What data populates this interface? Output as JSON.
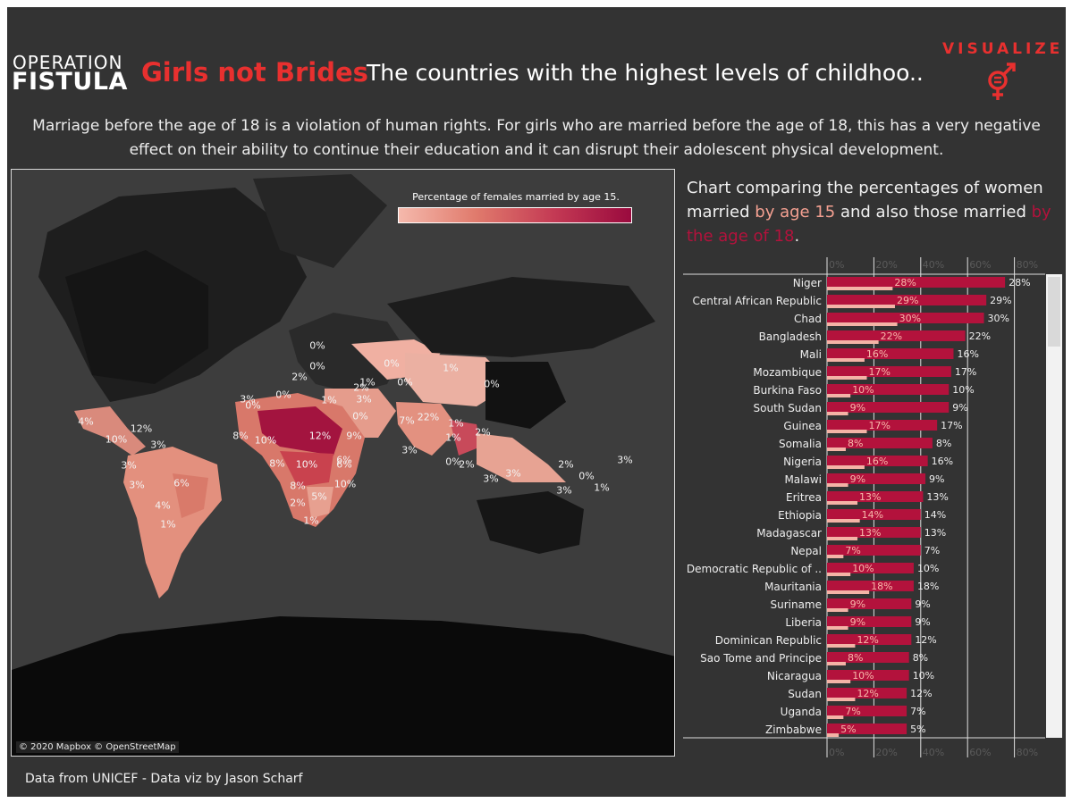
{
  "header": {
    "logo_line1": "OPERATION",
    "logo_line2": "FISTULA",
    "brand_title": "Girls not Brides",
    "headline": "The countries with the highest levels of childhoo..",
    "viz_word": "VISUALIZE",
    "viz_icon": "gender-equality-icon"
  },
  "intro_text": "Marriage before the age of 18 is a violation of human rights.  For girls who are married before the age of 18,  this has a very negative effect on their ability to continue their education and it can disrupt their adolescent physical development.",
  "map": {
    "legend_title": "Percentage of females married by age 15.",
    "attribution": "© 2020 Mapbox © OpenStreetMap",
    "labels": [
      "0%",
      "0%",
      "0%",
      "1%",
      "0%",
      "2%",
      "1%",
      "0%",
      "2%",
      "0%",
      "3%",
      "0%",
      "1%",
      "0%",
      "4%",
      "12%",
      "10%",
      "3%",
      "8%",
      "10%",
      "12%",
      "9%",
      "7%",
      "22%",
      "1%",
      "2%",
      "1%",
      "3%",
      "6%",
      "8%",
      "10%",
      "6%",
      "0%",
      "2%",
      "3%",
      "3%",
      "2%",
      "0%",
      "3%",
      "3%",
      "1%",
      "3%",
      "6%",
      "8%",
      "10%",
      "5%",
      "2%",
      "4%",
      "1%",
      "1%",
      "3%",
      "3%"
    ],
    "colors": {
      "low": "#f5b9ac",
      "mid": "#e07a6c",
      "high": "#9a0a3e"
    }
  },
  "chart_title": {
    "prefix": "Chart comparing the percentages of women married ",
    "age15": "by age 15",
    "middle": " and also those married ",
    "age18": "by the age of 18",
    "suffix": "."
  },
  "chart_data": {
    "type": "bar",
    "orientation": "horizontal",
    "xlim": [
      0,
      90
    ],
    "xticks": [
      "0%",
      "20%",
      "40%",
      "60%",
      "80%"
    ],
    "colors": {
      "by_15": "#f4b3a6",
      "by_18": "#b3123c"
    },
    "categories": [
      "Niger",
      "Central African Republic",
      "Chad",
      "Bangladesh",
      "Mali",
      "Mozambique",
      "Burkina Faso",
      "South Sudan",
      "Guinea",
      "Somalia",
      "Nigeria",
      "Malawi",
      "Eritrea",
      "Ethiopia",
      "Madagascar",
      "Nepal",
      "Democratic Republic of ..",
      "Mauritania",
      "Suriname",
      "Liberia",
      "Dominican Republic",
      "Sao Tome and Principe",
      "Nicaragua",
      "Sudan",
      "Uganda",
      "Zimbabwe"
    ],
    "series": [
      {
        "name": "by age 15",
        "values": [
          28,
          29,
          30,
          22,
          16,
          17,
          10,
          9,
          17,
          8,
          16,
          9,
          13,
          14,
          13,
          7,
          10,
          18,
          9,
          9,
          12,
          8,
          10,
          12,
          7,
          5
        ]
      },
      {
        "name": "by the age of 18",
        "values": [
          76,
          68,
          67,
          59,
          54,
          53,
          52,
          52,
          47,
          45,
          43,
          42,
          41,
          40,
          40,
          40,
          37,
          37,
          36,
          36,
          36,
          35,
          35,
          34,
          34,
          34
        ]
      }
    ],
    "labels_15": [
      "28%",
      "29%",
      "30%",
      "22%",
      "16%",
      "17%",
      "10%",
      "9%",
      "17%",
      "8%",
      "16%",
      "9%",
      "13%",
      "14%",
      "13%",
      "7%",
      "10%",
      "18%",
      "9%",
      "9%",
      "12%",
      "8%",
      "10%",
      "12%",
      "7%",
      "5%"
    ]
  },
  "footer": "Data from UNICEF - Data viz by Jason Scharf"
}
